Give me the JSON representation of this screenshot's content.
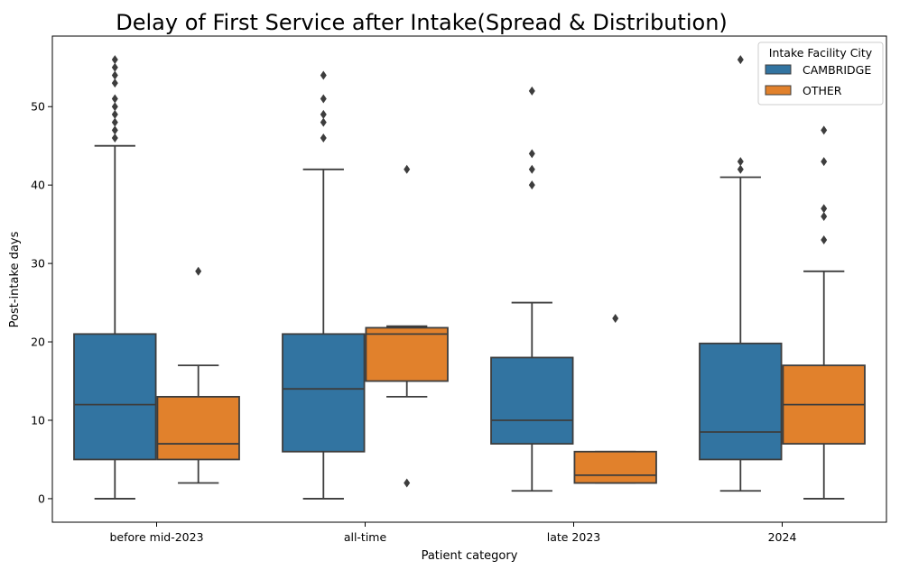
{
  "chart_data": {
    "type": "box",
    "title": "Delay of First Service after Intake(Spread & Distribution)",
    "xlabel": "Patient category",
    "ylabel": "Post-intake days",
    "categories": [
      "before mid-2023",
      "all-time",
      "late 2023",
      "2024"
    ],
    "ylim": [
      -3,
      59
    ],
    "yticks": [
      0,
      10,
      20,
      30,
      40,
      50
    ],
    "grid": false,
    "legend": {
      "title": "Intake Facility City",
      "placement": "top-right"
    },
    "series": [
      {
        "name": "CAMBRIDGE",
        "color": "#3274a1",
        "boxes": [
          {
            "min": 0,
            "q1": 5,
            "median": 12,
            "q3": 21,
            "max": 45,
            "outliers": [
              46,
              47,
              48,
              49,
              50,
              51,
              53,
              54,
              55,
              56
            ]
          },
          {
            "min": 0,
            "q1": 6,
            "median": 14,
            "q3": 21,
            "max": 42,
            "outliers": [
              46,
              48,
              49,
              51,
              54
            ]
          },
          {
            "min": 1,
            "q1": 7,
            "median": 10,
            "q3": 18,
            "max": 25,
            "outliers": [
              40,
              42,
              44,
              52
            ]
          },
          {
            "min": 1,
            "q1": 5,
            "median": 8.5,
            "q3": 19.8,
            "max": 41,
            "outliers": [
              42,
              43,
              56
            ]
          }
        ]
      },
      {
        "name": "OTHER",
        "color": "#e1812c",
        "boxes": [
          {
            "min": 2,
            "q1": 5,
            "median": 7,
            "q3": 13,
            "max": 17,
            "outliers": [
              29
            ]
          },
          {
            "min": 13,
            "q1": 15,
            "median": 21,
            "q3": 21.8,
            "max": 22,
            "outliers": [
              2,
              42
            ]
          },
          {
            "min": 2,
            "q1": 2,
            "median": 3,
            "q3": 6,
            "max": 6,
            "outliers": [
              23
            ]
          },
          {
            "min": 0,
            "q1": 7,
            "median": 12,
            "q3": 17,
            "max": 29,
            "outliers": [
              33,
              36,
              37,
              43,
              47
            ]
          }
        ]
      }
    ]
  }
}
